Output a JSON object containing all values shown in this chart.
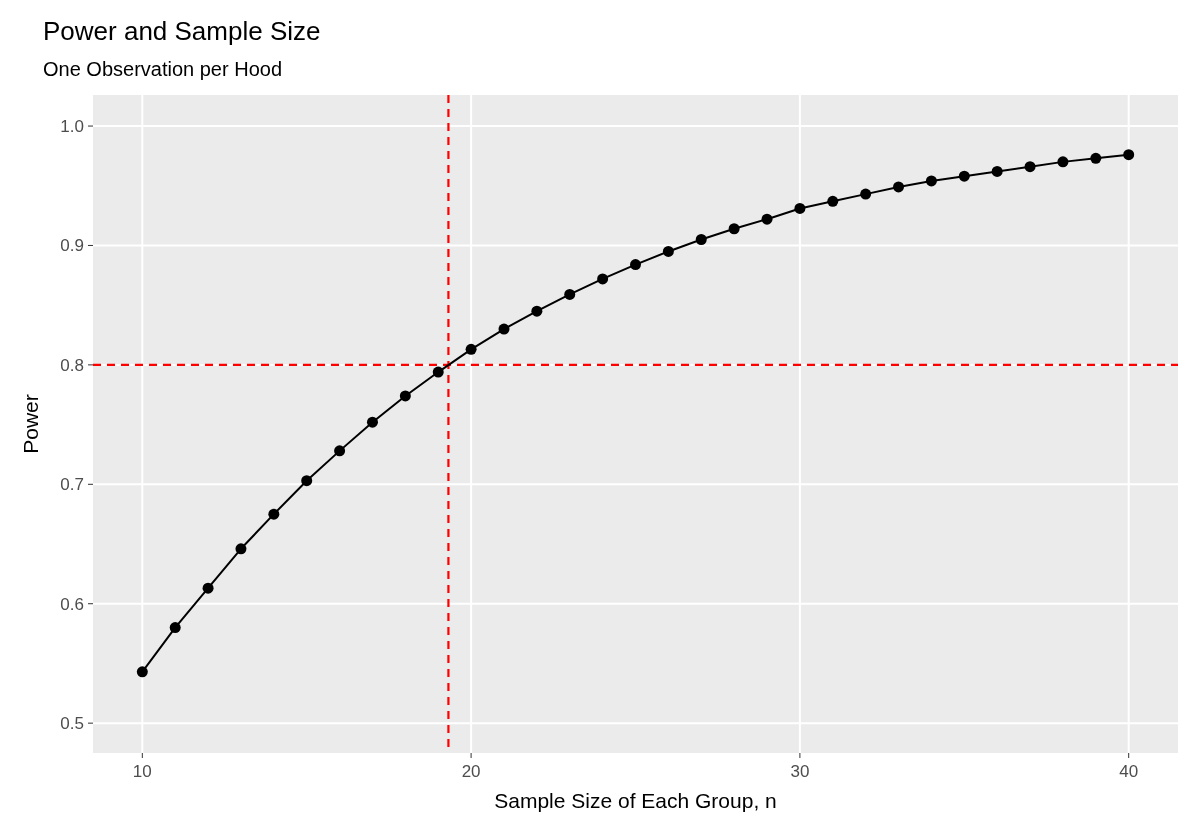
{
  "chart_data": {
    "type": "line",
    "title": "Power and Sample Size",
    "subtitle": "One Observation per Hood",
    "xlabel": "Sample Size of Each Group, n",
    "ylabel": "Power",
    "x": [
      10,
      11,
      12,
      13,
      14,
      15,
      16,
      17,
      18,
      19,
      20,
      21,
      22,
      23,
      24,
      25,
      26,
      27,
      28,
      29,
      30,
      31,
      32,
      33,
      34,
      35,
      36,
      37,
      38,
      39,
      40
    ],
    "series": [
      {
        "color": "#000000",
        "values": [
          0.543,
          0.58,
          0.613,
          0.646,
          0.675,
          0.703,
          0.728,
          0.752,
          0.774,
          0.794,
          0.813,
          0.83,
          0.845,
          0.859,
          0.872,
          0.884,
          0.895,
          0.905,
          0.914,
          0.922,
          0.931,
          0.937,
          0.943,
          0.949,
          0.954,
          0.958,
          0.962,
          0.966,
          0.97,
          0.973,
          0.976
        ]
      }
    ],
    "marker": "circle",
    "line_style": "solid",
    "grid": true,
    "xlim": [
      8.5,
      41.5
    ],
    "xticks": [
      10,
      20,
      30,
      40
    ],
    "ylim": [
      0.475,
      1.026
    ],
    "yticks": [
      0.5,
      0.6,
      0.7,
      0.8,
      0.9,
      {
        "value": 1,
        "label": "1.0"
      }
    ],
    "ref_lines": [
      {
        "axis": "x",
        "value": 19.31,
        "color": "#ff0000",
        "line_style": "dashed"
      },
      {
        "axis": "y",
        "value": 0.8,
        "color": "#ff0000",
        "line_style": "dashed"
      }
    ]
  }
}
